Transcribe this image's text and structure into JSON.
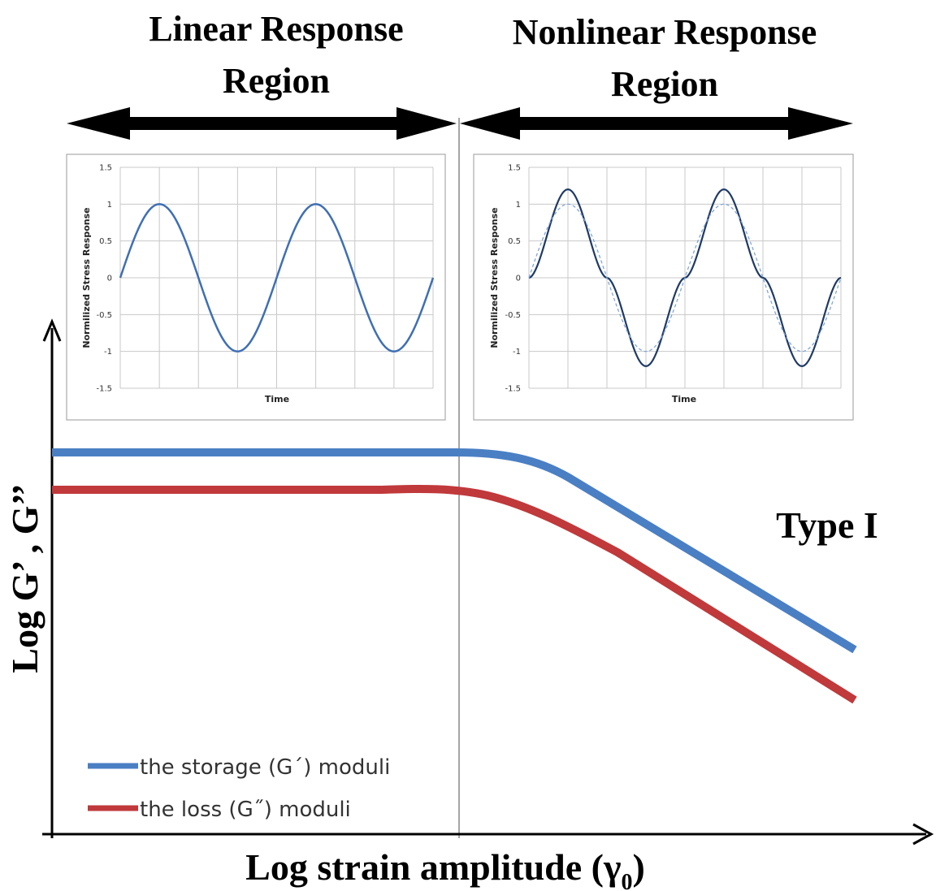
{
  "labels": {
    "linear_region": [
      "Linear Response",
      "Region"
    ],
    "nonlinear_region": [
      "Nonlinear Response",
      "Region"
    ],
    "type_label": "Type I",
    "y_axis_title": "Log G’ , G’’",
    "x_axis_title": "Log strain amplitude (γ",
    "x_axis_subscript": "0",
    "x_axis_close": ")"
  },
  "legend": [
    {
      "label": "the storage (G´) moduli",
      "color": "#4a7fc4"
    },
    {
      "label": "the loss (G˝) moduli",
      "color": "#c0393b"
    }
  ],
  "colors": {
    "storage": "#4a7fc4",
    "loss": "#c0393b",
    "inset_line": "#3f6fb3",
    "inset_nonlinear": "#1f3a66",
    "inset_reference": "#7fa6d6"
  },
  "chart_data": [
    {
      "type": "line",
      "title": "",
      "xlabel": "Time",
      "ylabel": "Normilized Stress Response",
      "ylim": [
        -1.5,
        1.5
      ],
      "yticks": [
        "1.5",
        "1",
        "0.5",
        "0",
        "-0.5",
        "-1",
        "-1.5"
      ],
      "grid": true,
      "series": [
        {
          "style": "sine",
          "amplitude": 1.0,
          "periods": 2
        }
      ]
    },
    {
      "type": "line",
      "title": "",
      "xlabel": "Time",
      "ylabel": "Normilized Stress Response",
      "ylim": [
        -1.5,
        1.5
      ],
      "yticks": [
        "1.5",
        "1",
        "0.5",
        "0",
        "-0.5",
        "-1",
        "-1.5"
      ],
      "grid": true,
      "series": [
        {
          "style": "distorted",
          "peak": 1.2,
          "periods": 2
        },
        {
          "style": "reference-sine-dashed",
          "amplitude": 1.0,
          "periods": 2
        }
      ]
    }
  ]
}
